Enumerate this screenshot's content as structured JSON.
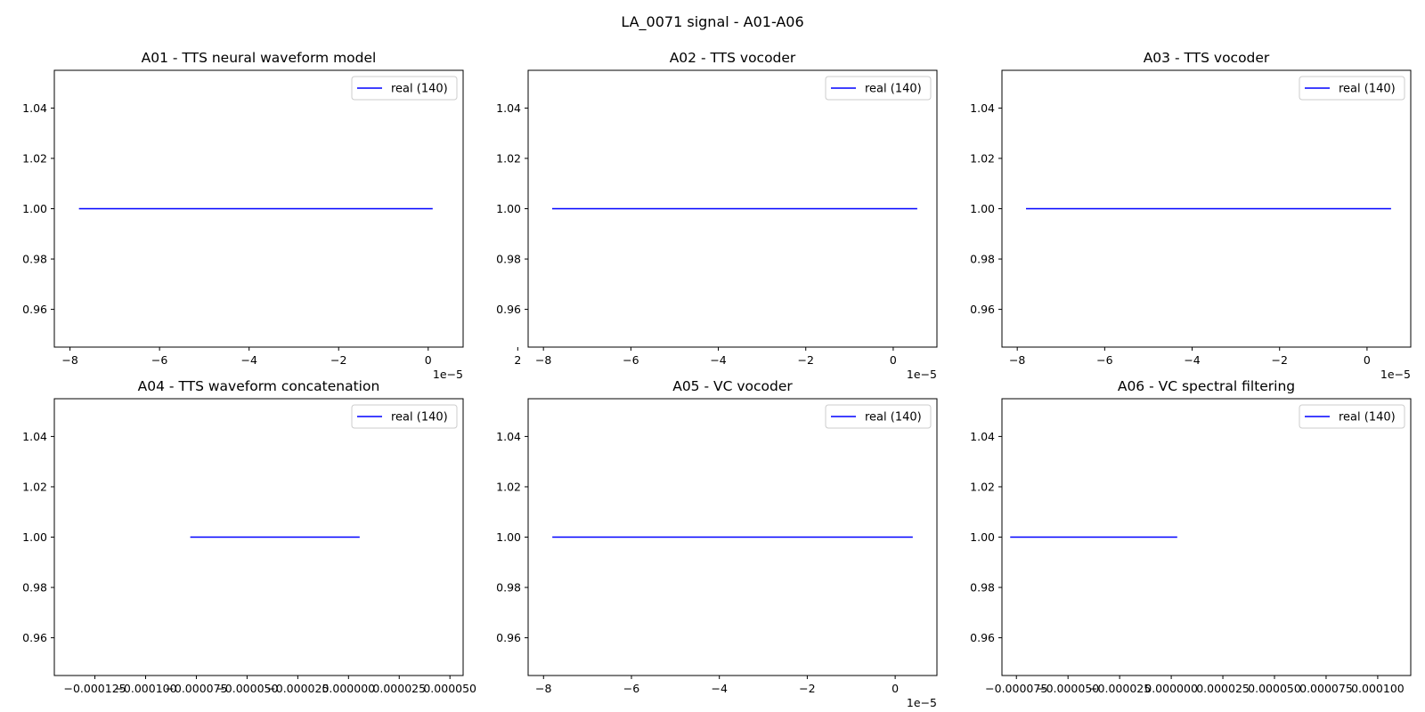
{
  "figure": {
    "suptitle": "LA_0071 signal - A01-A06"
  },
  "colors": {
    "line": "#0000ff",
    "axes": "#000000",
    "background": "#ffffff",
    "legend_border": "#cccccc"
  },
  "chart_data": [
    {
      "type": "line",
      "title": "A01 - TTS neural waveform model",
      "xlabel": "",
      "ylabel": "",
      "xlim": [
        -8.35e-05,
        7.8e-06
      ],
      "ylim": [
        0.945,
        1.055
      ],
      "x_ticks": [
        -8e-05,
        -6e-05,
        -4e-05,
        -2e-05,
        0,
        2e-05
      ],
      "x_tick_labels": [
        "−8",
        "−6",
        "−4",
        "−2",
        "0",
        "2"
      ],
      "x_offset_label": "1e−5",
      "y_ticks": [
        0.96,
        0.98,
        1.0,
        1.02,
        1.04
      ],
      "y_tick_labels": [
        "0.96",
        "0.98",
        "1.00",
        "1.02",
        "1.04"
      ],
      "series": [
        {
          "name": "real (140)",
          "x": [
            -7.8e-05,
            1e-06
          ],
          "y": [
            1.0,
            1.0
          ]
        }
      ],
      "legend": "top-right",
      "grid": false
    },
    {
      "type": "line",
      "title": "A02 - TTS vocoder",
      "xlabel": "",
      "ylabel": "",
      "xlim": [
        -8.35e-05,
        1e-05
      ],
      "ylim": [
        0.945,
        1.055
      ],
      "x_ticks": [
        -8e-05,
        -6e-05,
        -4e-05,
        -2e-05,
        0
      ],
      "x_tick_labels": [
        "−8",
        "−6",
        "−4",
        "−2",
        "0"
      ],
      "x_offset_label": "1e−5",
      "y_ticks": [
        0.96,
        0.98,
        1.0,
        1.02,
        1.04
      ],
      "y_tick_labels": [
        "0.96",
        "0.98",
        "1.00",
        "1.02",
        "1.04"
      ],
      "series": [
        {
          "name": "real (140)",
          "x": [
            -7.8e-05,
            5.5e-06
          ],
          "y": [
            1.0,
            1.0
          ]
        }
      ],
      "legend": "top-right",
      "grid": false
    },
    {
      "type": "line",
      "title": "A03 - TTS vocoder",
      "xlabel": "",
      "ylabel": "",
      "xlim": [
        -8.35e-05,
        1e-05
      ],
      "ylim": [
        0.945,
        1.055
      ],
      "x_ticks": [
        -8e-05,
        -6e-05,
        -4e-05,
        -2e-05,
        0
      ],
      "x_tick_labels": [
        "−8",
        "−6",
        "−4",
        "−2",
        "0"
      ],
      "x_offset_label": "1e−5",
      "y_ticks": [
        0.96,
        0.98,
        1.0,
        1.02,
        1.04
      ],
      "y_tick_labels": [
        "0.96",
        "0.98",
        "1.00",
        "1.02",
        "1.04"
      ],
      "series": [
        {
          "name": "real (140)",
          "x": [
            -7.8e-05,
            5.5e-06
          ],
          "y": [
            1.0,
            1.0
          ]
        }
      ],
      "legend": "top-right",
      "grid": false
    },
    {
      "type": "line",
      "title": "A04 - TTS waveform concatenation",
      "xlabel": "",
      "ylabel": "",
      "xlim": [
        -0.000145,
        5.65e-05
      ],
      "ylim": [
        0.945,
        1.055
      ],
      "x_ticks": [
        -0.000125,
        -0.0001,
        -7.5e-05,
        -5e-05,
        -2.5e-05,
        0,
        2.5e-05,
        5e-05
      ],
      "x_tick_labels": [
        "−0.000125",
        "−0.000100",
        "−0.000075",
        "−0.000050",
        "−0.000025",
        "0.000000",
        "0.000025",
        "0.000050"
      ],
      "x_offset_label": "",
      "y_ticks": [
        0.96,
        0.98,
        1.0,
        1.02,
        1.04
      ],
      "y_tick_labels": [
        "0.96",
        "0.98",
        "1.00",
        "1.02",
        "1.04"
      ],
      "series": [
        {
          "name": "real (140)",
          "x": [
            -7.8e-05,
            5.5e-06
          ],
          "y": [
            1.0,
            1.0
          ]
        }
      ],
      "legend": "top-right",
      "grid": false
    },
    {
      "type": "line",
      "title": "A05 - VC vocoder",
      "xlabel": "",
      "ylabel": "",
      "xlim": [
        -8.35e-05,
        9.5e-06
      ],
      "ylim": [
        0.945,
        1.055
      ],
      "x_ticks": [
        -8e-05,
        -6e-05,
        -4e-05,
        -2e-05,
        0
      ],
      "x_tick_labels": [
        "−8",
        "−6",
        "−4",
        "−2",
        "0"
      ],
      "x_offset_label": "1e−5",
      "y_ticks": [
        0.96,
        0.98,
        1.0,
        1.02,
        1.04
      ],
      "y_tick_labels": [
        "0.96",
        "0.98",
        "1.00",
        "1.02",
        "1.04"
      ],
      "series": [
        {
          "name": "real (140)",
          "x": [
            -7.8e-05,
            4e-06
          ],
          "y": [
            1.0,
            1.0
          ]
        }
      ],
      "legend": "top-right",
      "grid": false
    },
    {
      "type": "line",
      "title": "A06 - VC spectral filtering",
      "xlabel": "",
      "ylabel": "",
      "xlim": [
        -8.2e-05,
        0.000116
      ],
      "ylim": [
        0.945,
        1.055
      ],
      "x_ticks": [
        -7.5e-05,
        -5e-05,
        -2.5e-05,
        0,
        2.5e-05,
        5e-05,
        7.5e-05,
        0.0001
      ],
      "x_tick_labels": [
        "−0.000075",
        "−0.000050",
        "−0.000025",
        "0.000000",
        "0.000025",
        "0.000050",
        "0.000075",
        "0.000100"
      ],
      "x_offset_label": "",
      "y_ticks": [
        0.96,
        0.98,
        1.0,
        1.02,
        1.04
      ],
      "y_tick_labels": [
        "0.96",
        "0.98",
        "1.00",
        "1.02",
        "1.04"
      ],
      "series": [
        {
          "name": "real (140)",
          "x": [
            -7.8e-05,
            2.9e-06
          ],
          "y": [
            1.0,
            1.0
          ]
        }
      ],
      "legend": "top-right",
      "grid": false
    }
  ]
}
